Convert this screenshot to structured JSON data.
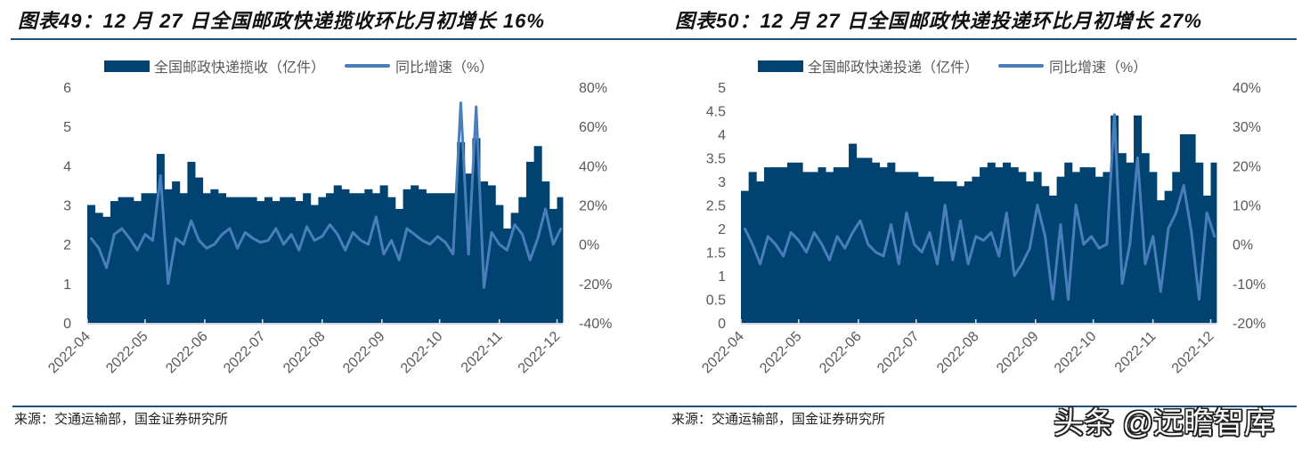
{
  "charts": [
    {
      "title": "图表49：12 月 27 日全国邮政快递揽收环比月初增长 16%",
      "source": "来源：交通运输部，国金证券研究所",
      "legend": [
        "全国邮政快递揽收（亿件）",
        "同比增速（%）"
      ]
    },
    {
      "title": "图表50：12 月 27 日全国邮政快递投递环比月初增长 27%",
      "source": "来源：交通运输部，国金证券研究所",
      "legend": [
        "全国邮政快递投递（亿件）",
        "同比增速（%）"
      ]
    }
  ],
  "watermark": "头条 @远瞻智库",
  "colors": {
    "bars": "#004370",
    "line": "#4a7ebb",
    "rule": "#1f4e79",
    "text": "#595959"
  },
  "chart_data": [
    {
      "type": "bar+line",
      "title": "图表49：12 月 27 日全国邮政快递揽收环比月初增长 16%",
      "x_ticks": [
        "2022-04",
        "2022-05",
        "2022-06",
        "2022-07",
        "2022-08",
        "2022-09",
        "2022-10",
        "2022-11",
        "2022-12"
      ],
      "xlim": [
        "2022-04-01",
        "2022-12-04"
      ],
      "y_left": {
        "ticks": [
          "0",
          "1",
          "2",
          "3",
          "4",
          "5",
          "6"
        ],
        "range": [
          0,
          6
        ]
      },
      "y_right": {
        "ticks": [
          "-40%",
          "-20%",
          "0%",
          "20%",
          "40%",
          "60%",
          "80%"
        ],
        "range": [
          -40,
          80
        ]
      },
      "grid": false,
      "legend_position": "top",
      "x": [
        "2022-04-01",
        "2022-04-05",
        "2022-04-09",
        "2022-04-13",
        "2022-04-17",
        "2022-04-21",
        "2022-04-25",
        "2022-04-29",
        "2022-05-03",
        "2022-05-07",
        "2022-05-11",
        "2022-05-15",
        "2022-05-19",
        "2022-05-23",
        "2022-05-27",
        "2022-05-31",
        "2022-06-04",
        "2022-06-08",
        "2022-06-12",
        "2022-06-16",
        "2022-06-20",
        "2022-06-24",
        "2022-06-28",
        "2022-07-02",
        "2022-07-06",
        "2022-07-10",
        "2022-07-14",
        "2022-07-18",
        "2022-07-22",
        "2022-07-26",
        "2022-07-30",
        "2022-08-03",
        "2022-08-07",
        "2022-08-11",
        "2022-08-15",
        "2022-08-19",
        "2022-08-23",
        "2022-08-27",
        "2022-08-31",
        "2022-09-04",
        "2022-09-08",
        "2022-09-12",
        "2022-09-16",
        "2022-09-20",
        "2022-09-24",
        "2022-09-28",
        "2022-10-02",
        "2022-10-06",
        "2022-10-10",
        "2022-10-14",
        "2022-10-18",
        "2022-10-22",
        "2022-10-26",
        "2022-10-30",
        "2022-11-03",
        "2022-11-07",
        "2022-11-11",
        "2022-11-15",
        "2022-11-19",
        "2022-11-23",
        "2022-11-27",
        "2022-12-01"
      ],
      "series": [
        {
          "name": "全国邮政快递揽收（亿件）",
          "axis": "left",
          "kind": "bar",
          "values": [
            3.0,
            2.8,
            2.7,
            3.1,
            3.2,
            3.2,
            3.1,
            3.3,
            3.3,
            4.3,
            3.4,
            3.6,
            3.3,
            4.1,
            3.7,
            3.3,
            3.4,
            3.3,
            3.2,
            3.2,
            3.2,
            3.2,
            3.1,
            3.2,
            3.1,
            3.2,
            3.2,
            3.1,
            3.3,
            3.0,
            3.2,
            3.3,
            3.5,
            3.4,
            3.3,
            3.3,
            3.4,
            3.3,
            3.5,
            3.2,
            2.9,
            3.4,
            3.5,
            3.4,
            3.3,
            3.3,
            3.3,
            3.3,
            4.6,
            3.8,
            4.7,
            3.6,
            3.5,
            3.0,
            2.4,
            2.8,
            3.2,
            4.1,
            4.5,
            3.6,
            2.9,
            3.2
          ]
        },
        {
          "name": "同比增速（%）",
          "axis": "right",
          "kind": "line",
          "values": [
            3,
            -2,
            -12,
            5,
            8,
            3,
            -3,
            5,
            2,
            35,
            -20,
            3,
            0,
            12,
            2,
            -2,
            0,
            5,
            8,
            -2,
            6,
            3,
            1,
            2,
            8,
            0,
            5,
            -3,
            9,
            2,
            4,
            10,
            5,
            -3,
            6,
            2,
            0,
            14,
            -5,
            2,
            -8,
            8,
            5,
            2,
            0,
            4,
            1,
            -5,
            72,
            -5,
            70,
            -22,
            6,
            0,
            -3,
            10,
            5,
            -8,
            3,
            18,
            0,
            8
          ]
        }
      ]
    },
    {
      "type": "bar+line",
      "title": "图表50：12 月 27 日全国邮政快递投递环比月初增长 27%",
      "x_ticks": [
        "2022-04",
        "2022-05",
        "2022-06",
        "2022-07",
        "2022-08",
        "2022-09",
        "2022-10",
        "2022-11",
        "2022-12"
      ],
      "xlim": [
        "2022-04-01",
        "2022-12-04"
      ],
      "y_left": {
        "ticks": [
          "0",
          "0.5",
          "1",
          "1.5",
          "2",
          "2.5",
          "3",
          "3.5",
          "4",
          "4.5",
          "5"
        ],
        "range": [
          0,
          5
        ]
      },
      "y_right": {
        "ticks": [
          "-20%",
          "-10%",
          "0%",
          "10%",
          "20%",
          "30%",
          "40%"
        ],
        "range": [
          -20,
          40
        ]
      },
      "grid": false,
      "legend_position": "top",
      "x": [
        "2022-04-01",
        "2022-04-05",
        "2022-04-09",
        "2022-04-13",
        "2022-04-17",
        "2022-04-21",
        "2022-04-25",
        "2022-04-29",
        "2022-05-03",
        "2022-05-07",
        "2022-05-11",
        "2022-05-15",
        "2022-05-19",
        "2022-05-23",
        "2022-05-27",
        "2022-05-31",
        "2022-06-04",
        "2022-06-08",
        "2022-06-12",
        "2022-06-16",
        "2022-06-20",
        "2022-06-24",
        "2022-06-28",
        "2022-07-02",
        "2022-07-06",
        "2022-07-10",
        "2022-07-14",
        "2022-07-18",
        "2022-07-22",
        "2022-07-26",
        "2022-07-30",
        "2022-08-03",
        "2022-08-07",
        "2022-08-11",
        "2022-08-15",
        "2022-08-19",
        "2022-08-23",
        "2022-08-27",
        "2022-08-31",
        "2022-09-04",
        "2022-09-08",
        "2022-09-12",
        "2022-09-16",
        "2022-09-20",
        "2022-09-24",
        "2022-09-28",
        "2022-10-02",
        "2022-10-06",
        "2022-10-10",
        "2022-10-14",
        "2022-10-18",
        "2022-10-22",
        "2022-10-26",
        "2022-10-30",
        "2022-11-03",
        "2022-11-07",
        "2022-11-11",
        "2022-11-15",
        "2022-11-19",
        "2022-11-23",
        "2022-11-27",
        "2022-12-01"
      ],
      "series": [
        {
          "name": "全国邮政快递投递（亿件）",
          "axis": "left",
          "kind": "bar",
          "values": [
            2.8,
            3.2,
            3.0,
            3.3,
            3.3,
            3.3,
            3.4,
            3.4,
            3.2,
            3.2,
            3.3,
            3.2,
            3.3,
            3.3,
            3.8,
            3.5,
            3.5,
            3.4,
            3.3,
            3.4,
            3.2,
            3.2,
            3.2,
            3.1,
            3.1,
            3.0,
            3.0,
            3.0,
            2.9,
            3.0,
            3.1,
            3.3,
            3.4,
            3.3,
            3.4,
            3.3,
            3.2,
            3.0,
            3.2,
            2.9,
            2.7,
            3.1,
            3.4,
            3.2,
            3.3,
            3.3,
            3.1,
            3.2,
            4.4,
            3.6,
            3.4,
            4.4,
            3.6,
            3.2,
            2.6,
            2.8,
            3.2,
            4.0,
            4.0,
            3.4,
            2.7,
            3.4
          ]
        },
        {
          "name": "同比增速（%）",
          "axis": "right",
          "kind": "line",
          "values": [
            4,
            0,
            -5,
            2,
            0,
            -3,
            3,
            1,
            -2,
            3,
            0,
            -4,
            2,
            -1,
            3,
            6,
            0,
            -2,
            -3,
            5,
            -5,
            8,
            0,
            -2,
            3,
            -5,
            10,
            -4,
            6,
            -5,
            2,
            1,
            3,
            -3,
            8,
            -8,
            -5,
            -1,
            10,
            2,
            -14,
            5,
            -14,
            10,
            0,
            2,
            -1,
            0,
            33,
            -10,
            0,
            22,
            -5,
            2,
            -12,
            4,
            8,
            15,
            3,
            -14,
            8,
            2
          ]
        }
      ]
    }
  ]
}
